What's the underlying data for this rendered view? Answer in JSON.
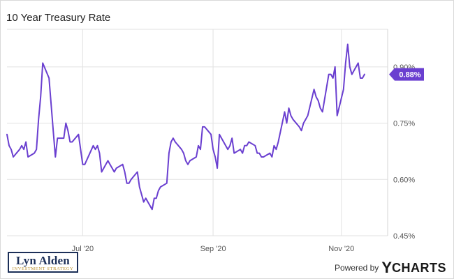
{
  "chart_data": {
    "type": "line",
    "title": "10 Year Treasury Rate",
    "ylim": [
      0.45,
      1.0
    ],
    "xlim": [
      "2020-05-26",
      "2020-11-23"
    ],
    "y_ticks": [
      {
        "value": 0.9,
        "label": "0.90%"
      },
      {
        "value": 0.75,
        "label": "0.75%"
      },
      {
        "value": 0.6,
        "label": "0.60%"
      },
      {
        "value": 0.45,
        "label": "0.45%"
      }
    ],
    "x_ticks": [
      {
        "date": "2020-07-01",
        "label": "Jul '20"
      },
      {
        "date": "2020-09-01",
        "label": "Sep '20"
      },
      {
        "date": "2020-11-01",
        "label": "Nov '20"
      }
    ],
    "grid": true,
    "last_value_label": "0.88%",
    "line_color": "#6a3fd0",
    "series": [
      {
        "points": [
          [
            "2020-05-26",
            0.72
          ],
          [
            "2020-05-27",
            0.69
          ],
          [
            "2020-05-28",
            0.68
          ],
          [
            "2020-05-29",
            0.66
          ],
          [
            "2020-06-01",
            0.68
          ],
          [
            "2020-06-02",
            0.69
          ],
          [
            "2020-06-03",
            0.68
          ],
          [
            "2020-06-04",
            0.7
          ],
          [
            "2020-06-05",
            0.66
          ],
          [
            "2020-06-08",
            0.67
          ],
          [
            "2020-06-09",
            0.68
          ],
          [
            "2020-06-10",
            0.76
          ],
          [
            "2020-06-11",
            0.82
          ],
          [
            "2020-06-12",
            0.91
          ],
          [
            "2020-06-15",
            0.87
          ],
          [
            "2020-06-16",
            0.8
          ],
          [
            "2020-06-17",
            0.73
          ],
          [
            "2020-06-18",
            0.66
          ],
          [
            "2020-06-19",
            0.71
          ],
          [
            "2020-06-22",
            0.71
          ],
          [
            "2020-06-23",
            0.75
          ],
          [
            "2020-06-24",
            0.73
          ],
          [
            "2020-06-25",
            0.7
          ],
          [
            "2020-06-26",
            0.7
          ],
          [
            "2020-06-29",
            0.72
          ],
          [
            "2020-06-30",
            0.68
          ],
          [
            "2020-07-01",
            0.64
          ],
          [
            "2020-07-02",
            0.64
          ],
          [
            "2020-07-06",
            0.69
          ],
          [
            "2020-07-07",
            0.68
          ],
          [
            "2020-07-08",
            0.69
          ],
          [
            "2020-07-09",
            0.67
          ],
          [
            "2020-07-10",
            0.62
          ],
          [
            "2020-07-13",
            0.65
          ],
          [
            "2020-07-14",
            0.64
          ],
          [
            "2020-07-15",
            0.63
          ],
          [
            "2020-07-16",
            0.62
          ],
          [
            "2020-07-17",
            0.63
          ],
          [
            "2020-07-20",
            0.64
          ],
          [
            "2020-07-21",
            0.62
          ],
          [
            "2020-07-22",
            0.59
          ],
          [
            "2020-07-23",
            0.59
          ],
          [
            "2020-07-24",
            0.6
          ],
          [
            "2020-07-27",
            0.62
          ],
          [
            "2020-07-28",
            0.58
          ],
          [
            "2020-07-29",
            0.56
          ],
          [
            "2020-07-30",
            0.54
          ],
          [
            "2020-07-31",
            0.55
          ],
          [
            "2020-08-03",
            0.52
          ],
          [
            "2020-08-04",
            0.55
          ],
          [
            "2020-08-05",
            0.55
          ],
          [
            "2020-08-06",
            0.57
          ],
          [
            "2020-08-07",
            0.58
          ],
          [
            "2020-08-10",
            0.59
          ],
          [
            "2020-08-11",
            0.67
          ],
          [
            "2020-08-12",
            0.7
          ],
          [
            "2020-08-13",
            0.71
          ],
          [
            "2020-08-14",
            0.7
          ],
          [
            "2020-08-17",
            0.68
          ],
          [
            "2020-08-18",
            0.67
          ],
          [
            "2020-08-19",
            0.65
          ],
          [
            "2020-08-20",
            0.64
          ],
          [
            "2020-08-21",
            0.65
          ],
          [
            "2020-08-24",
            0.66
          ],
          [
            "2020-08-25",
            0.69
          ],
          [
            "2020-08-26",
            0.68
          ],
          [
            "2020-08-27",
            0.74
          ],
          [
            "2020-08-28",
            0.74
          ],
          [
            "2020-08-31",
            0.72
          ],
          [
            "2020-09-01",
            0.68
          ],
          [
            "2020-09-02",
            0.66
          ],
          [
            "2020-09-03",
            0.63
          ],
          [
            "2020-09-04",
            0.72
          ],
          [
            "2020-09-08",
            0.68
          ],
          [
            "2020-09-09",
            0.69
          ],
          [
            "2020-09-10",
            0.71
          ],
          [
            "2020-09-11",
            0.67
          ],
          [
            "2020-09-14",
            0.68
          ],
          [
            "2020-09-15",
            0.67
          ],
          [
            "2020-09-16",
            0.69
          ],
          [
            "2020-09-17",
            0.69
          ],
          [
            "2020-09-18",
            0.7
          ],
          [
            "2020-09-21",
            0.69
          ],
          [
            "2020-09-22",
            0.67
          ],
          [
            "2020-09-23",
            0.67
          ],
          [
            "2020-09-24",
            0.66
          ],
          [
            "2020-09-25",
            0.66
          ],
          [
            "2020-09-28",
            0.67
          ],
          [
            "2020-09-29",
            0.66
          ],
          [
            "2020-09-30",
            0.69
          ],
          [
            "2020-10-01",
            0.68
          ],
          [
            "2020-10-02",
            0.7
          ],
          [
            "2020-10-05",
            0.78
          ],
          [
            "2020-10-06",
            0.75
          ],
          [
            "2020-10-07",
            0.79
          ],
          [
            "2020-10-08",
            0.77
          ],
          [
            "2020-10-09",
            0.76
          ],
          [
            "2020-10-12",
            0.74
          ],
          [
            "2020-10-13",
            0.73
          ],
          [
            "2020-10-14",
            0.75
          ],
          [
            "2020-10-15",
            0.76
          ],
          [
            "2020-10-16",
            0.77
          ],
          [
            "2020-10-19",
            0.84
          ],
          [
            "2020-10-20",
            0.82
          ],
          [
            "2020-10-21",
            0.81
          ],
          [
            "2020-10-22",
            0.79
          ],
          [
            "2020-10-23",
            0.78
          ],
          [
            "2020-10-26",
            0.88
          ],
          [
            "2020-10-27",
            0.88
          ],
          [
            "2020-10-28",
            0.87
          ],
          [
            "2020-10-29",
            0.9
          ],
          [
            "2020-10-30",
            0.77
          ],
          [
            "2020-11-02",
            0.84
          ],
          [
            "2020-11-03",
            0.91
          ],
          [
            "2020-11-04",
            0.96
          ],
          [
            "2020-11-05",
            0.9
          ],
          [
            "2020-11-06",
            0.88
          ],
          [
            "2020-11-09",
            0.91
          ],
          [
            "2020-11-10",
            0.87
          ],
          [
            "2020-11-11",
            0.87
          ],
          [
            "2020-11-12",
            0.88
          ]
        ]
      }
    ]
  },
  "branding": {
    "author_name": "Lyn Alden",
    "author_tagline": "INVESTMENT STRATEGY",
    "powered_by": "Powered by",
    "ycharts_y": "Y",
    "ycharts_rest": "CHARTS"
  }
}
